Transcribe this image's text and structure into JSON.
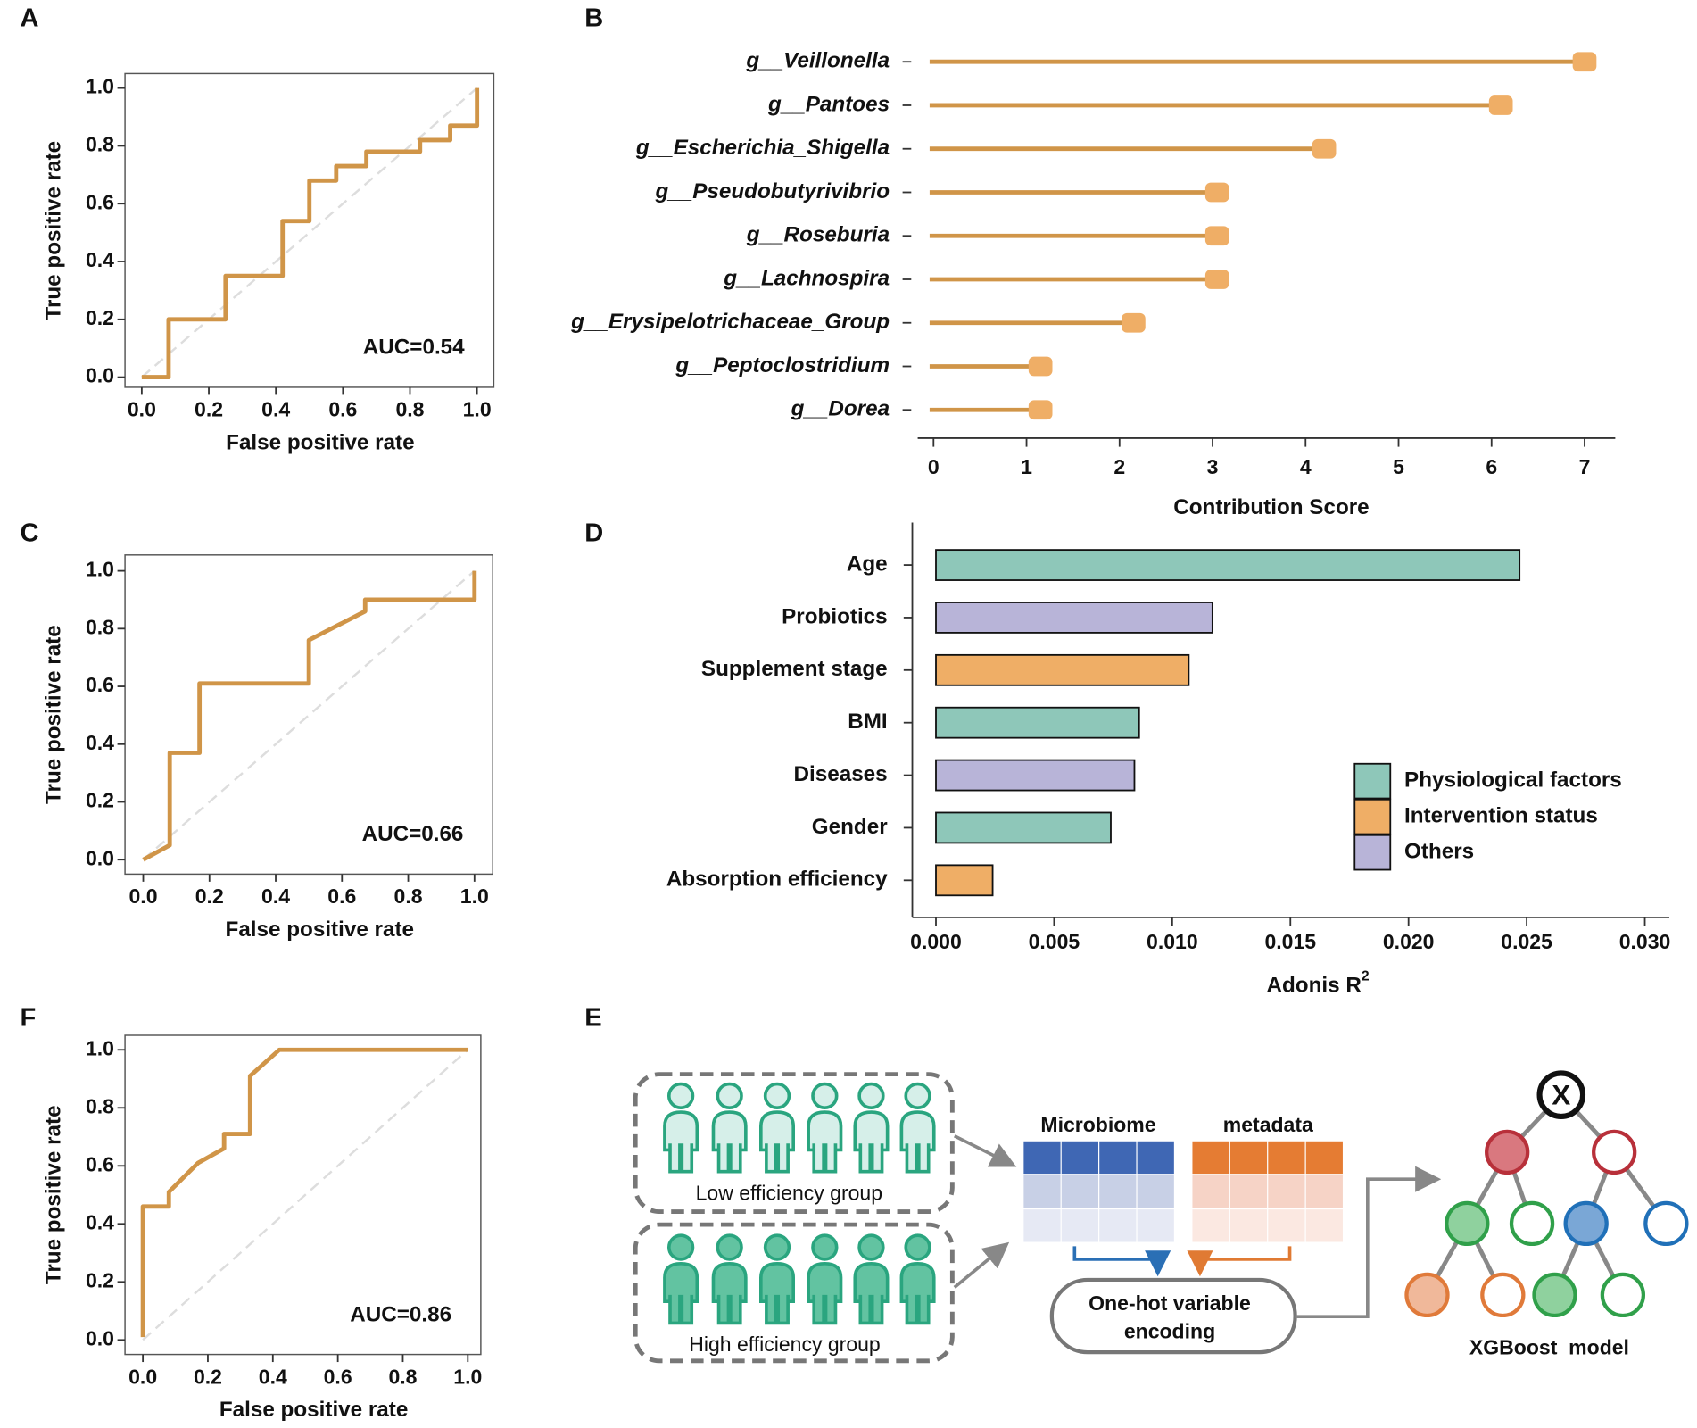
{
  "panel_labels": [
    "A",
    "B",
    "C",
    "D",
    "F",
    "E"
  ],
  "chart_data": [
    {
      "type": "line",
      "x_label": "False positive rate",
      "y_label": "True positive rate",
      "annotation": "AUC=0.54",
      "xlim": [
        -0.05,
        1.05
      ],
      "ylim": [
        -0.035,
        1.05
      ],
      "xticks": [
        {
          "value": 0,
          "label": "0.0"
        },
        {
          "value": 0.2,
          "label": "0.2"
        },
        {
          "value": 0.4,
          "label": "0.4"
        },
        {
          "value": 0.6,
          "label": "0.6"
        },
        {
          "value": 0.8,
          "label": "0.8"
        },
        {
          "value": 1,
          "label": "1.0"
        }
      ],
      "yticks": [
        {
          "value": 0,
          "label": "0.0"
        },
        {
          "value": 0.2,
          "label": "0.2"
        },
        {
          "value": 0.4,
          "label": "0.4"
        },
        {
          "value": 0.6,
          "label": "0.6"
        },
        {
          "value": 0.8,
          "label": "0.8"
        },
        {
          "value": 1,
          "label": "1.0"
        }
      ],
      "series": [
        {
          "color": "#d09548",
          "x": [
            0,
            0.08,
            0.08,
            0.25,
            0.25,
            0.42,
            0.42,
            0.5,
            0.5,
            0.58,
            0.58,
            0.67,
            0.67,
            0.83,
            0.83,
            0.92,
            0.92,
            1,
            1
          ],
          "values": [
            0,
            0,
            0.2,
            0.2,
            0.35,
            0.35,
            0.54,
            0.54,
            0.68,
            0.68,
            0.73,
            0.73,
            0.78,
            0.78,
            0.82,
            0.82,
            0.87,
            0.87,
            1
          ]
        }
      ]
    },
    {
      "type": "lollipop",
      "x_label": "Contribution Score",
      "categories": [
        "g__Veillonella",
        "g__Pantoes",
        "g__Escherichia_Shigella",
        "g__Pseudobutyrivibrio",
        "g__Roseburia",
        "g__Lachnospira",
        "g__Erysipelotrichaceae_Group",
        "g__Peptoclostridium",
        "g__Dorea"
      ],
      "values": [
        7.0,
        6.1,
        4.2,
        3.05,
        3.05,
        3.05,
        2.15,
        1.15,
        1.15
      ],
      "color": "#d09548",
      "marker_color": "#efae66",
      "xlim": [
        -0.17,
        7.33
      ],
      "xticks": [
        0,
        1,
        2,
        3,
        4,
        5,
        6,
        7
      ]
    },
    {
      "type": "line",
      "x_label": "False positive rate",
      "y_label": "True positive rate",
      "annotation": "AUC=0.66",
      "xlim": [
        -0.055,
        1.055
      ],
      "ylim": [
        -0.05,
        1.055
      ],
      "xticks": [
        {
          "value": 0,
          "label": "0.0"
        },
        {
          "value": 0.2,
          "label": "0.2"
        },
        {
          "value": 0.4,
          "label": "0.4"
        },
        {
          "value": 0.6,
          "label": "0.6"
        },
        {
          "value": 0.8,
          "label": "0.8"
        },
        {
          "value": 1,
          "label": "1.0"
        }
      ],
      "yticks": [
        {
          "value": 0,
          "label": "0.0"
        },
        {
          "value": 0.2,
          "label": "0.2"
        },
        {
          "value": 0.4,
          "label": "0.4"
        },
        {
          "value": 0.6,
          "label": "0.6"
        },
        {
          "value": 0.8,
          "label": "0.8"
        },
        {
          "value": 1,
          "label": "1.0"
        }
      ],
      "series": [
        {
          "color": "#d09548",
          "x": [
            0,
            0.08,
            0.08,
            0.17,
            0.17,
            0.5,
            0.5,
            0.67,
            0.67,
            1,
            1
          ],
          "values": [
            0,
            0.05,
            0.37,
            0.37,
            0.61,
            0.61,
            0.76,
            0.86,
            0.9,
            0.9,
            1
          ]
        }
      ]
    },
    {
      "type": "hbar",
      "x_label": "Adonis R",
      "x_label_superscript": "2",
      "categories": [
        "Age",
        "Probiotics",
        "Supplement stage",
        "BMI",
        "Diseases",
        "Gender",
        "Absorption efficiency"
      ],
      "values": [
        0.0247,
        0.0117,
        0.0107,
        0.0086,
        0.0084,
        0.0074,
        0.0024
      ],
      "bar_group": [
        0,
        2,
        1,
        0,
        2,
        0,
        1
      ],
      "legend_groups": [
        {
          "name": "Physiological factors",
          "color": "#8ec7b9"
        },
        {
          "name": "Intervention status",
          "color": "#efae66"
        },
        {
          "name": "Others",
          "color": "#b8b4d8"
        }
      ],
      "legend": "right",
      "xlim": [
        -0.001,
        0.0309
      ],
      "xticks": [
        {
          "value": 0,
          "label": "0.000"
        },
        {
          "value": 0.005,
          "label": "0.005"
        },
        {
          "value": 0.01,
          "label": "0.010"
        },
        {
          "value": 0.015,
          "label": "0.015"
        },
        {
          "value": 0.02,
          "label": "0.020"
        },
        {
          "value": 0.025,
          "label": "0.025"
        },
        {
          "value": 0.03,
          "label": "0.030"
        }
      ]
    },
    {
      "type": "line",
      "x_label": "False positive rate",
      "y_label": "True positive rate",
      "annotation": "AUC=0.86",
      "xlim": [
        -0.055,
        1.04
      ],
      "ylim": [
        -0.05,
        1.05
      ],
      "xticks": [
        {
          "value": 0,
          "label": "0.0"
        },
        {
          "value": 0.2,
          "label": "0.2"
        },
        {
          "value": 0.4,
          "label": "0.4"
        },
        {
          "value": 0.6,
          "label": "0.6"
        },
        {
          "value": 0.8,
          "label": "0.8"
        },
        {
          "value": 1,
          "label": "1.0"
        }
      ],
      "yticks": [
        {
          "value": 0,
          "label": "0.0"
        },
        {
          "value": 0.2,
          "label": "0.2"
        },
        {
          "value": 0.4,
          "label": "0.4"
        },
        {
          "value": 0.6,
          "label": "0.6"
        },
        {
          "value": 0.8,
          "label": "0.8"
        },
        {
          "value": 1,
          "label": "1.0"
        }
      ],
      "series": [
        {
          "color": "#d09548",
          "x": [
            0,
            0,
            0.08,
            0.08,
            0.17,
            0.25,
            0.25,
            0.33,
            0.33,
            0.42,
            1
          ],
          "values": [
            0.01,
            0.46,
            0.46,
            0.51,
            0.61,
            0.66,
            0.71,
            0.71,
            0.91,
            1,
            1
          ]
        }
      ]
    }
  ],
  "panel_E": {
    "groups": [
      "Low efficiency group",
      "High efficiency group"
    ],
    "tables": [
      "Microbiome",
      "metadata"
    ],
    "encoding": [
      "One-hot variable",
      "encoding"
    ],
    "model_node": "X",
    "model": "XGBoost  model"
  }
}
